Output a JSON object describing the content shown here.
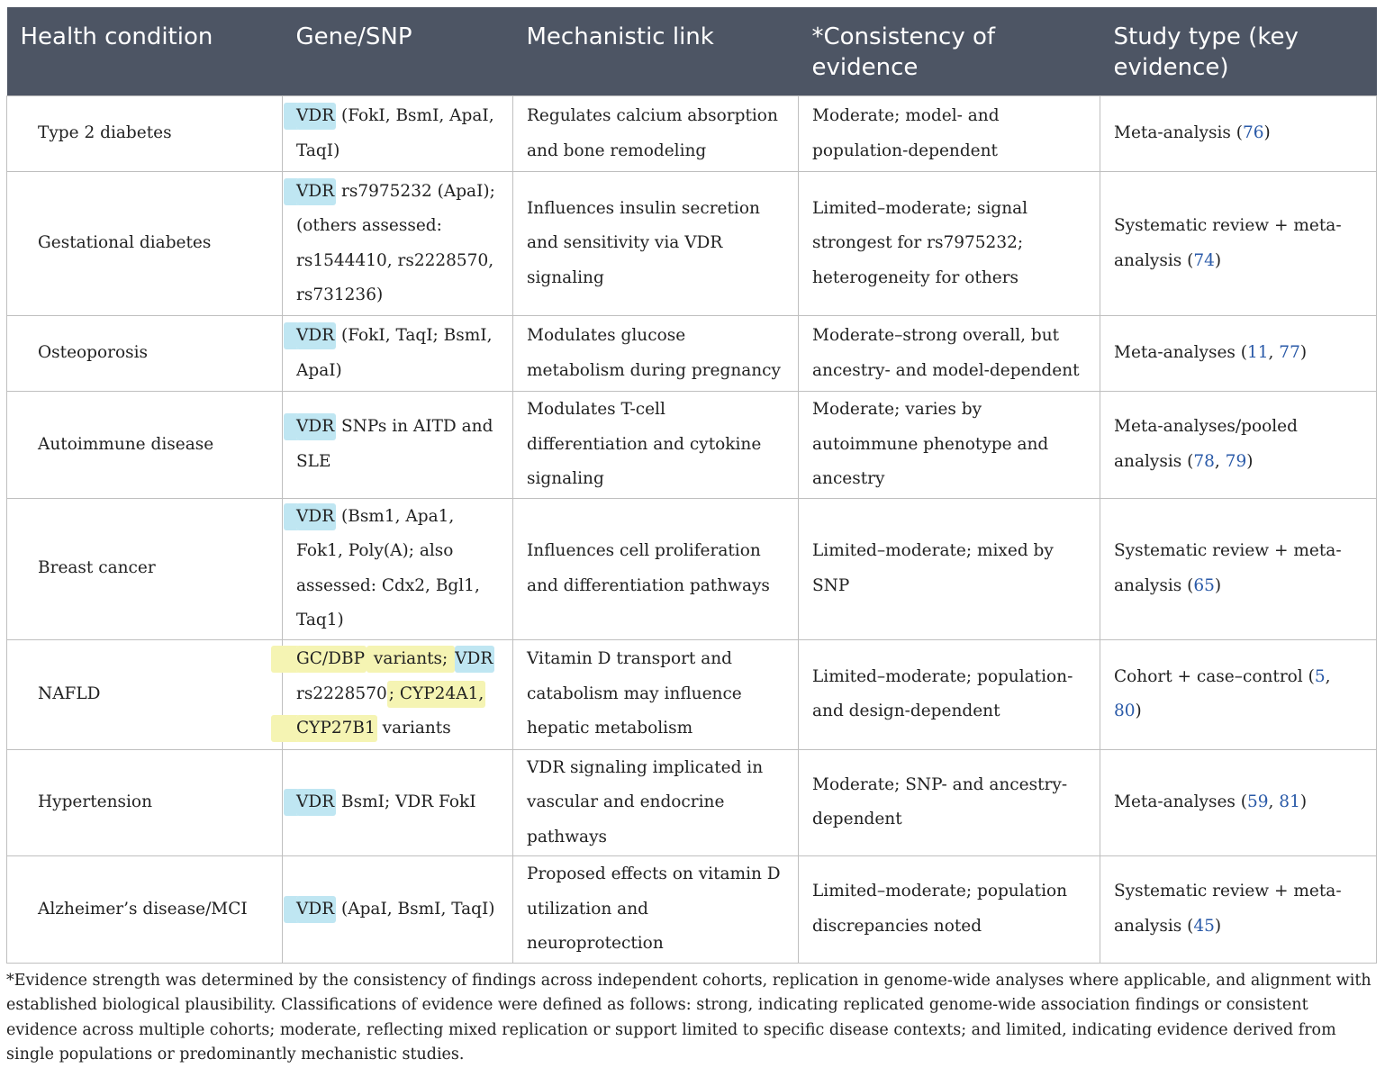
{
  "table": {
    "headers": [
      "Health condition",
      "Gene/SNP",
      "Mechanistic link",
      "*Consistency of evidence",
      "Study type (key evidence)"
    ],
    "rows": [
      {
        "condition": "Type 2 diabetes",
        "gene": {
          "highlight": "VDR",
          "rest": " (FokI, BsmI, ApaI, TaqI)"
        },
        "mechanism": "Regulates calcium absorption and bone remodeling",
        "consistency": "Moderate; model- and population-dependent",
        "study": {
          "text": "Meta-analysis (",
          "refs": [
            "76"
          ],
          "close": ")"
        }
      },
      {
        "condition": "Gestational diabetes",
        "gene": {
          "highlight": "VDR",
          "rest": " rs7975232 (ApaI); (others assessed: rs1544410, rs2228570, rs731236)"
        },
        "mechanism": "Influences insulin secretion and sensitivity via VDR signaling",
        "consistency": "Limited–moderate; signal strongest for rs7975232; heterogeneity for others",
        "study": {
          "text": "Systematic review + meta-analysis (",
          "refs": [
            "74"
          ],
          "close": ")"
        }
      },
      {
        "condition": "Osteoporosis",
        "gene": {
          "highlight": "VDR",
          "rest": " (FokI, TaqI; BsmI, ApaI)"
        },
        "mechanism": "Modulates glucose metabolism during pregnancy",
        "consistency": "Moderate–strong overall, but ancestry- and model-dependent",
        "study": {
          "text": "Meta-analyses (",
          "refs": [
            "11",
            "77"
          ],
          "close": ")"
        }
      },
      {
        "condition": "Autoimmune disease",
        "gene": {
          "highlight": "VDR",
          "rest": " SNPs in AITD and SLE"
        },
        "mechanism": "Modulates T-cell differentiation and cytokine signaling",
        "consistency": "Moderate; varies by autoimmune phenotype and ancestry",
        "study": {
          "text": "Meta-analyses/pooled analysis (",
          "refs": [
            "78",
            "79"
          ],
          "close": ")"
        }
      },
      {
        "condition": "Breast cancer",
        "gene": {
          "highlight": "VDR",
          "rest": " (Bsm1, Apa1, Fok1, Poly(A); also assessed: Cdx2, Bgl1, Taq1)"
        },
        "mechanism": "Influences cell proliferation and differentiation pathways",
        "consistency": "Limited–moderate; mixed by SNP",
        "study": {
          "text": "Systematic review + meta-analysis (",
          "refs": [
            "65"
          ],
          "close": ")"
        }
      },
      {
        "condition": "NAFLD",
        "gene_nafld": {
          "p1": "GC/DBP",
          "p2": " variants; ",
          "p3": "VDR",
          "p4": " rs2228570",
          "p5": "; CYP24A1,",
          "p6": " ",
          "p7": "CYP27B1",
          "p8": " variants"
        },
        "mechanism": "Vitamin D transport and catabolism may influence hepatic metabolism",
        "consistency": "Limited–moderate; population- and design-dependent",
        "study": {
          "text": "Cohort + case–control (",
          "refs": [
            "5",
            "80"
          ],
          "close": ")"
        }
      },
      {
        "condition": "Hypertension",
        "gene": {
          "highlight": "VDR",
          "rest": " BsmI; VDR FokI"
        },
        "mechanism": "VDR signaling implicated in vascular and endocrine pathways",
        "consistency": "Moderate; SNP- and ancestry-dependent",
        "study": {
          "text": "Meta-analyses (",
          "refs": [
            "59",
            "81"
          ],
          "close": ")"
        }
      },
      {
        "condition": "Alzheimer’s disease/MCI",
        "gene": {
          "highlight": "VDR",
          "rest": " (ApaI, BsmI, TaqI)"
        },
        "mechanism": "Proposed effects on vitamin D utilization and neuroprotection",
        "consistency": "Limited–moderate; population discrepancies noted",
        "study": {
          "text": "Systematic review + meta-analysis (",
          "refs": [
            "45"
          ],
          "close": ")"
        }
      }
    ]
  },
  "footnote": "*Evidence strength was determined by the consistency of findings across independent cohorts, replication in genome-wide analyses where applicable, and alignment with established biological plausibility. Classifications of evidence were defined as follows: strong, indicating replicated genome-wide association findings or consistent evidence across multiple cohorts; moderate, reflecting mixed replication or support limited to specific disease contexts; and limited, indicating evidence derived from single populations or predominantly mechanistic studies.",
  "colors": {
    "header_bg": "#4d5564",
    "header_text": "#ffffff",
    "border": "#bfbfbf",
    "highlight_blue": "#bfe6f2",
    "highlight_yellow": "#f5f4b3",
    "ref_link": "#2a5aa8"
  }
}
